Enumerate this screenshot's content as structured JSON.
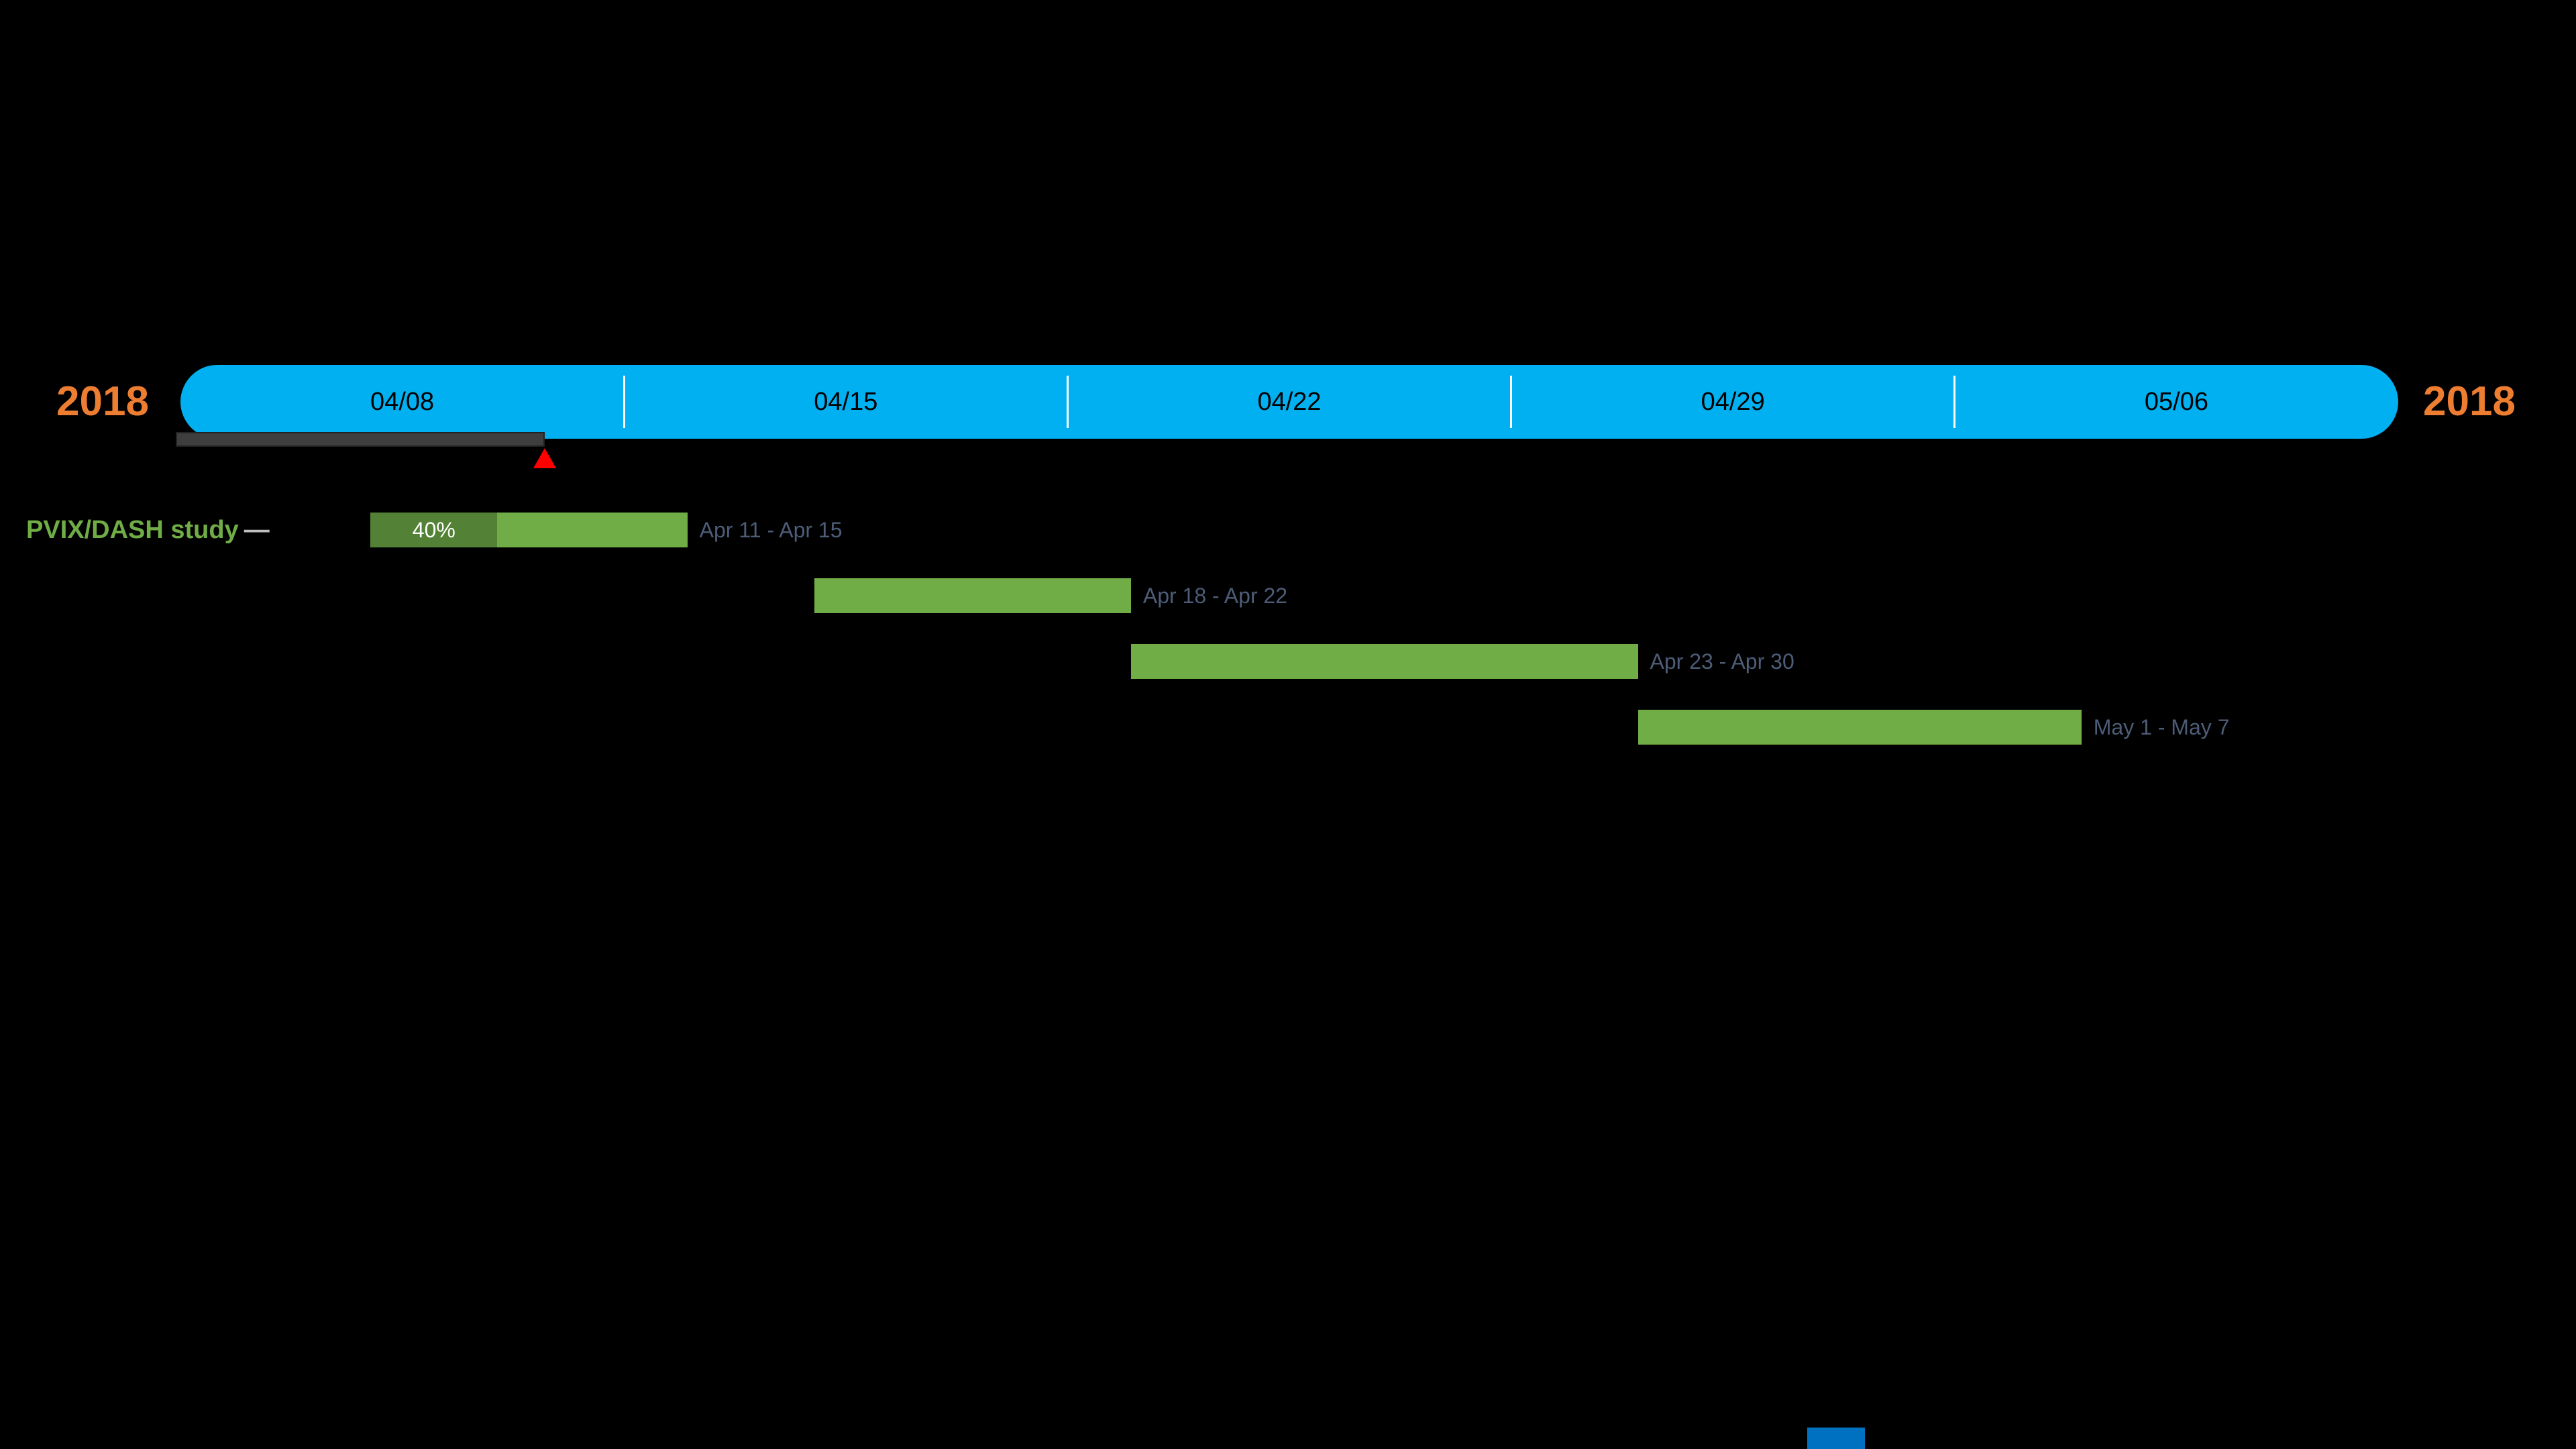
{
  "canvas": {
    "background": "#000000"
  },
  "timeline": {
    "year_left": "2018",
    "year_right": "2018",
    "weeks": [
      "04/08",
      "04/15",
      "04/22",
      "04/29",
      "05/06"
    ],
    "bar_color": "#00b0f0",
    "year_color": "#ed7d31",
    "tick_color": "#ffffff",
    "week_label_color": "#000000"
  },
  "row_header": {
    "label": "PVIX/DASH study",
    "connector": "—",
    "color": "#70ad47"
  },
  "today_marker": {
    "triangle_color": "#ff0000",
    "elapsed_bar_color": "#3e3e3e"
  },
  "chart_data": {
    "type": "bar",
    "subtype": "gantt-timeline",
    "title": "PVIX/DASH study",
    "year": "2018",
    "week_ticks": [
      "04/08",
      "04/15",
      "04/22",
      "04/29",
      "05/06"
    ],
    "timeline_start": "04/08",
    "timeline_end": "05/06 week",
    "today": {
      "elapsed_days": 5.75
    },
    "series": [
      {
        "name": "PVIX/DASH study",
        "tasks": [
          {
            "label": "Apr 11 - Apr 15",
            "start_day": 3,
            "duration_days": 5,
            "percent_complete": 40,
            "percent_label": "40%"
          },
          {
            "label": "Apr 18 - Apr 22",
            "start_day": 10,
            "duration_days": 5
          },
          {
            "label": "Apr 23 - Apr 30",
            "start_day": 15,
            "duration_days": 8
          },
          {
            "label": "May 1 - May 7",
            "start_day": 23,
            "duration_days": 7
          }
        ]
      }
    ],
    "colors": {
      "bar": "#70ad47",
      "complete_fill": "#538135",
      "task_label": "#4d5d78"
    }
  }
}
